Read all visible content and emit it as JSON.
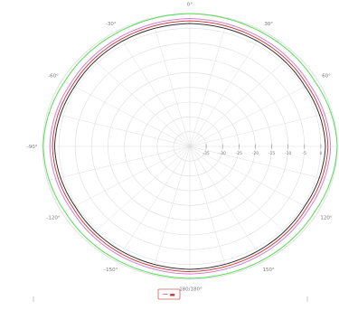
{
  "chart_data": {
    "type": "polar",
    "title": "",
    "angle_labels": [
      {
        "angle": 0,
        "text": "0°"
      },
      {
        "angle": 30,
        "text": "30°"
      },
      {
        "angle": 60,
        "text": "60°"
      },
      {
        "angle": 90,
        "text": "90°"
      },
      {
        "angle": 120,
        "text": "120°"
      },
      {
        "angle": 150,
        "text": "150°"
      },
      {
        "angle": 180,
        "text": "-180/180°"
      },
      {
        "angle": -150,
        "text": "-150°"
      },
      {
        "angle": -120,
        "text": "-120°"
      },
      {
        "angle": -90,
        "text": "-90°"
      },
      {
        "angle": -60,
        "text": "-60°"
      },
      {
        "angle": -30,
        "text": "-30°"
      }
    ],
    "radial_labels": [
      "-35",
      "-30",
      "-25",
      "-20",
      "-15",
      "-10",
      "-5",
      "0"
    ],
    "radial_range": [
      -40,
      0
    ],
    "series": [
      {
        "color": "#55dd55",
        "values": [
          {
            "angle": 0,
            "r": 0
          },
          {
            "angle": 30,
            "r": -0.5
          },
          {
            "angle": 60,
            "r": -0.8
          },
          {
            "angle": 90,
            "r": 0
          },
          {
            "angle": 120,
            "r": -0.8
          },
          {
            "angle": 150,
            "r": -0.5
          },
          {
            "angle": 180,
            "r": -0.3
          },
          {
            "angle": -150,
            "r": -0.5
          },
          {
            "angle": -120,
            "r": -0.8
          },
          {
            "angle": -90,
            "r": -0.2
          },
          {
            "angle": -60,
            "r": -0.8
          },
          {
            "angle": -30,
            "r": -0.5
          }
        ]
      },
      {
        "color": "#d080d0",
        "values": [
          {
            "angle": 0,
            "r": -1.5
          },
          {
            "angle": 30,
            "r": -2.0
          },
          {
            "angle": 60,
            "r": -2.5
          },
          {
            "angle": 90,
            "r": -1.8
          },
          {
            "angle": 120,
            "r": -2.6
          },
          {
            "angle": 150,
            "r": -2.1
          },
          {
            "angle": 180,
            "r": -1.6
          },
          {
            "angle": -150,
            "r": -2.0
          },
          {
            "angle": -120,
            "r": -2.6
          },
          {
            "angle": -90,
            "r": -2.0
          },
          {
            "angle": -60,
            "r": -2.5
          },
          {
            "angle": -30,
            "r": -2.0
          }
        ]
      },
      {
        "color": "#d04040",
        "values": [
          {
            "angle": 0,
            "r": -2.2
          },
          {
            "angle": 30,
            "r": -2.7
          },
          {
            "angle": 60,
            "r": -3.2
          },
          {
            "angle": 90,
            "r": -2.5
          },
          {
            "angle": 120,
            "r": -3.3
          },
          {
            "angle": 150,
            "r": -2.8
          },
          {
            "angle": 180,
            "r": -2.3
          },
          {
            "angle": -150,
            "r": -2.7
          },
          {
            "angle": -120,
            "r": -3.3
          },
          {
            "angle": -90,
            "r": -2.7
          },
          {
            "angle": -60,
            "r": -3.2
          },
          {
            "angle": -30,
            "r": -2.7
          }
        ]
      },
      {
        "color": "#333333",
        "values": [
          {
            "angle": 0,
            "r": -3.0
          },
          {
            "angle": 30,
            "r": -3.4
          },
          {
            "angle": 60,
            "r": -3.9
          },
          {
            "angle": 90,
            "r": -3.2
          },
          {
            "angle": 120,
            "r": -4.0
          },
          {
            "angle": 150,
            "r": -3.5
          },
          {
            "angle": 180,
            "r": -3.0
          },
          {
            "angle": -150,
            "r": -3.4
          },
          {
            "angle": -120,
            "r": -4.0
          },
          {
            "angle": -90,
            "r": -3.3
          },
          {
            "angle": -60,
            "r": -3.9
          },
          {
            "angle": -30,
            "r": -3.4
          }
        ]
      }
    ],
    "legend": {
      "text": "ꟷ ▬",
      "color": "#d03030",
      "position": "bottom-center"
    },
    "colors": {
      "grid": "#dddddd",
      "axis": "#cccccc",
      "tick_text": "#777777"
    }
  }
}
